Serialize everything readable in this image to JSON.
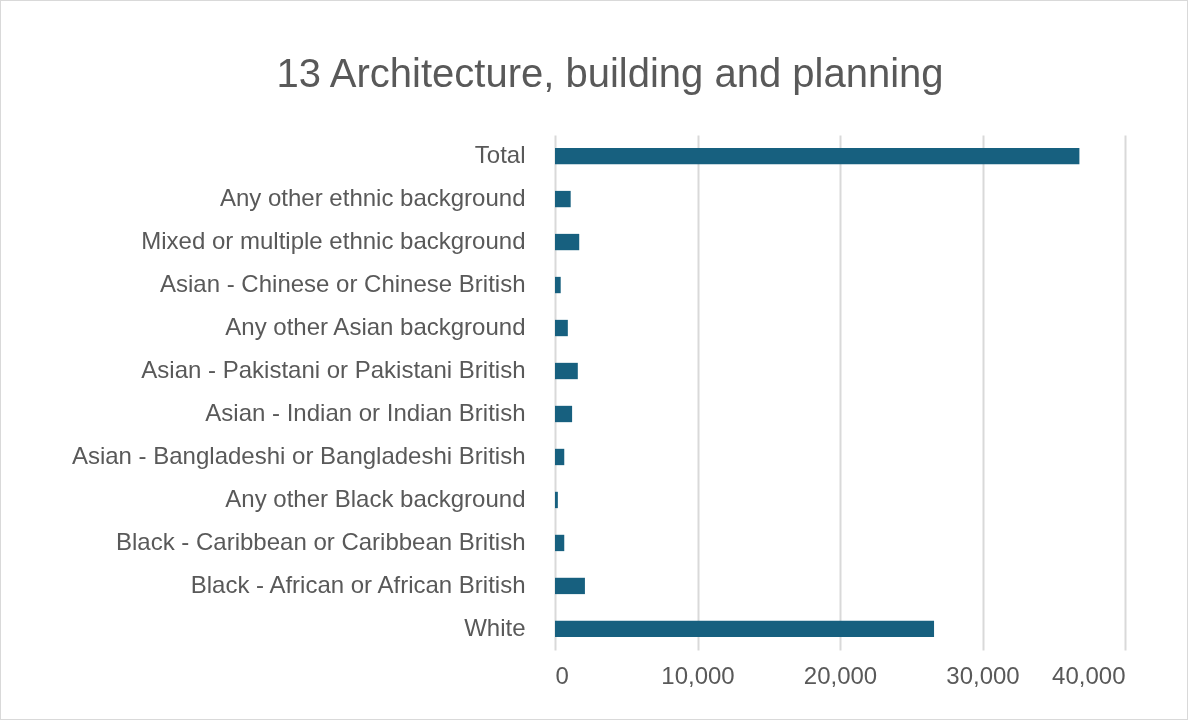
{
  "chart_data": {
    "type": "bar",
    "orientation": "horizontal",
    "title": "13 Architecture, building and planning",
    "categories": [
      "Total",
      "Any other ethnic background",
      "Mixed or multiple ethnic background",
      "Asian - Chinese or Chinese British",
      "Any other Asian background",
      "Asian - Pakistani or Pakistani British",
      "Asian - Indian or Indian British",
      "Asian - Bangladeshi or Bangladeshi British",
      "Any other Black background",
      "Black - Caribbean or Caribbean British",
      "Black - African or African British",
      "White"
    ],
    "values": [
      36800,
      1100,
      1700,
      400,
      900,
      1600,
      1200,
      650,
      200,
      650,
      2100,
      26600
    ],
    "color": "#17607f",
    "xlim": [
      0,
      40000
    ],
    "xticks": [
      {
        "value": 0,
        "label": "0"
      },
      {
        "value": 10000,
        "label": "10,000"
      },
      {
        "value": 20000,
        "label": "20,000"
      },
      {
        "value": 30000,
        "label": "30,000"
      },
      {
        "value": 40000,
        "label": "40,000"
      }
    ],
    "grid": "x"
  }
}
